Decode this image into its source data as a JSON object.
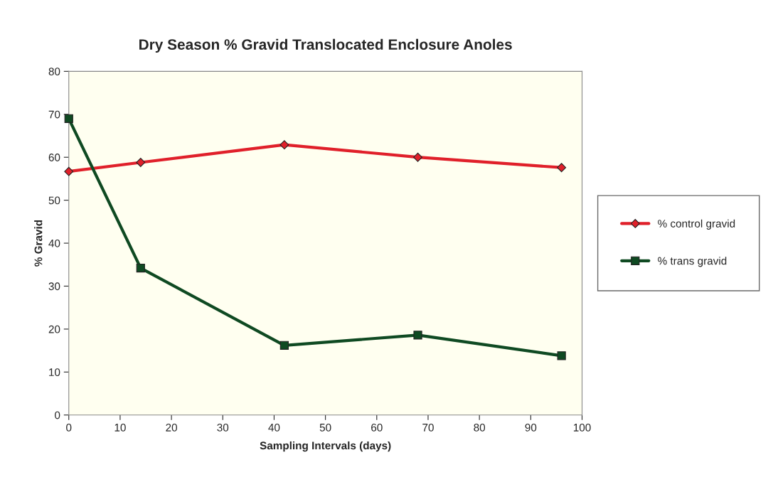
{
  "chart_data": {
    "type": "line",
    "title": "Dry Season % Gravid Translocated Enclosure Anoles",
    "xlabel": "Sampling Intervals (days)",
    "ylabel": "% Gravid",
    "x": [
      0,
      14,
      42,
      68,
      96
    ],
    "series": [
      {
        "name": "% control gravid",
        "color": "#e0202a",
        "marker": "diamond",
        "values": [
          56.7,
          58.8,
          62.9,
          60.0,
          57.6
        ]
      },
      {
        "name": "% trans gravid",
        "color": "#0f4a22",
        "marker": "square",
        "values": [
          69,
          34.2,
          16.2,
          18.6,
          13.8
        ]
      }
    ],
    "xlim": [
      0,
      100
    ],
    "xticks": [
      0,
      10,
      20,
      30,
      40,
      50,
      60,
      70,
      80,
      90,
      100
    ],
    "ylim": [
      0,
      80
    ],
    "yticks": [
      0,
      10,
      20,
      30,
      40,
      50,
      60,
      70,
      80
    ],
    "grid": false,
    "legend": "right",
    "line_style": "solid"
  }
}
